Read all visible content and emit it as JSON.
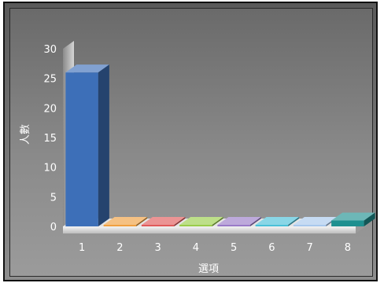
{
  "chart_data": {
    "type": "bar",
    "categories": [
      "1",
      "2",
      "3",
      "4",
      "5",
      "6",
      "7",
      "8"
    ],
    "values": [
      26,
      0,
      0,
      0,
      0,
      0,
      0,
      1
    ],
    "ylabel": "人數",
    "xlabel": "選項",
    "ylim": [
      0,
      30
    ],
    "yticks": [
      0,
      5,
      10,
      15,
      20,
      25,
      30
    ],
    "grid": false,
    "colors": [
      "#3d6fb8",
      "#f0a040",
      "#e05a5a",
      "#9acd4a",
      "#9a7ac8",
      "#4ac0d8",
      "#a8c8ec",
      "#1e9090"
    ]
  }
}
